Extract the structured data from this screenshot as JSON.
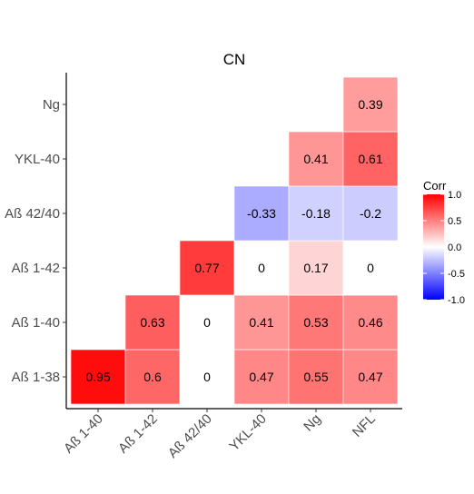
{
  "chart_data": {
    "type": "heatmap",
    "title": "CN",
    "xlabel": "",
    "ylabel": "",
    "x_categories": [
      "Aß 1-40",
      "Aß 1-42",
      "Aß 42/40",
      "YKL-40",
      "Ng",
      "NFL"
    ],
    "y_categories": [
      "Aß 1-38",
      "Aß 1-40",
      "Aß 1-42",
      "Aß 42/40",
      "YKL-40",
      "Ng"
    ],
    "cells": [
      {
        "x": "Aß 1-40",
        "y": "Aß 1-38",
        "value": 0.95,
        "label": "0.95"
      },
      {
        "x": "Aß 1-42",
        "y": "Aß 1-38",
        "value": 0.6,
        "label": "0.6"
      },
      {
        "x": "Aß 42/40",
        "y": "Aß 1-38",
        "value": 0,
        "label": "0"
      },
      {
        "x": "YKL-40",
        "y": "Aß 1-38",
        "value": 0.47,
        "label": "0.47"
      },
      {
        "x": "Ng",
        "y": "Aß 1-38",
        "value": 0.55,
        "label": "0.55"
      },
      {
        "x": "NFL",
        "y": "Aß 1-38",
        "value": 0.47,
        "label": "0.47"
      },
      {
        "x": "Aß 1-42",
        "y": "Aß 1-40",
        "value": 0.63,
        "label": "0.63"
      },
      {
        "x": "Aß 42/40",
        "y": "Aß 1-40",
        "value": 0,
        "label": "0"
      },
      {
        "x": "YKL-40",
        "y": "Aß 1-40",
        "value": 0.41,
        "label": "0.41"
      },
      {
        "x": "Ng",
        "y": "Aß 1-40",
        "value": 0.53,
        "label": "0.53"
      },
      {
        "x": "NFL",
        "y": "Aß 1-40",
        "value": 0.46,
        "label": "0.46"
      },
      {
        "x": "Aß 42/40",
        "y": "Aß 1-42",
        "value": 0.77,
        "label": "0.77"
      },
      {
        "x": "YKL-40",
        "y": "Aß 1-42",
        "value": 0,
        "label": "0"
      },
      {
        "x": "Ng",
        "y": "Aß 1-42",
        "value": 0.17,
        "label": "0.17"
      },
      {
        "x": "NFL",
        "y": "Aß 1-42",
        "value": 0,
        "label": "0"
      },
      {
        "x": "YKL-40",
        "y": "Aß 42/40",
        "value": -0.33,
        "label": "-0.33"
      },
      {
        "x": "Ng",
        "y": "Aß 42/40",
        "value": -0.18,
        "label": "-0.18"
      },
      {
        "x": "NFL",
        "y": "Aß 42/40",
        "value": -0.2,
        "label": "-0.2"
      },
      {
        "x": "Ng",
        "y": "YKL-40",
        "value": 0.41,
        "label": "0.41"
      },
      {
        "x": "NFL",
        "y": "YKL-40",
        "value": 0.61,
        "label": "0.61"
      },
      {
        "x": "NFL",
        "y": "Ng",
        "value": 0.39,
        "label": "0.39"
      }
    ],
    "legend": {
      "title": "Corr",
      "placement": "right",
      "range": [
        -1,
        1
      ],
      "ticks": [
        1.0,
        0.5,
        0.0,
        -0.5,
        -1.0
      ],
      "tick_labels": [
        "1.0",
        "0.5",
        "0.0",
        "-0.5",
        "-1.0"
      ],
      "colors": {
        "low": "#0000ff",
        "mid": "#ffffff",
        "high": "#ff0000"
      }
    },
    "grid": false,
    "x_tick_rotation": 45
  }
}
